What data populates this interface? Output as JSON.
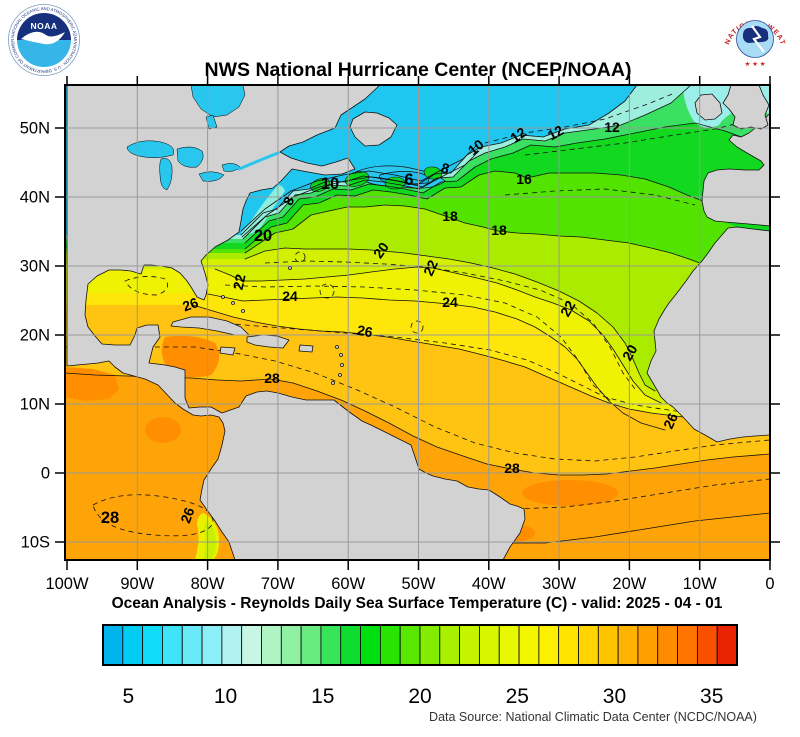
{
  "header": {
    "title": "NWS National Hurricane Center (NCEP/NOAA)"
  },
  "logos": {
    "noaa_acronym": "NOAA",
    "noaa_ring_text": "NATIONAL OCEANIC AND ATMOSPHERIC ADMINISTRATION · U.S. DEPARTMENT OF COMMERCE",
    "nws_ring_text": "NATIONAL WEATHER SERVICE",
    "nws_stars": "★ ★ ★"
  },
  "map": {
    "lat_ticks": [
      "50N",
      "40N",
      "30N",
      "20N",
      "10N",
      "0",
      "10S"
    ],
    "lon_ticks": [
      "100W",
      "90W",
      "80W",
      "70W",
      "60W",
      "50W",
      "40W",
      "30W",
      "20W",
      "10W",
      "0"
    ],
    "contour_labels": [
      "10",
      "6",
      "8",
      "8",
      "10",
      "12",
      "12",
      "12",
      "16",
      "18",
      "18",
      "20",
      "20",
      "20",
      "22",
      "22",
      "22",
      "24",
      "24",
      "26",
      "26",
      "26",
      "28",
      "28",
      "28",
      "26"
    ],
    "land_color": "#d2d2d2",
    "grid_color": "#999999",
    "cold_water_color": "#1fc7f0",
    "warm_water_color": "#ffa408"
  },
  "footer": {
    "subtitle": "Ocean Analysis - Reynolds Daily Sea Surface Temperature (C) - valid: 2025 - 04 - 01",
    "datasource": "Data Source: National Climatic Data Center (NCDC/NOAA)"
  },
  "colorbar": {
    "ticks": [
      "5",
      "10",
      "15",
      "20",
      "25",
      "30",
      "35"
    ],
    "colors": [
      "#00b4ee",
      "#00ccf4",
      "#10dcf8",
      "#40e4f8",
      "#68eaf8",
      "#8ceef6",
      "#b0f2f0",
      "#c8f6e4",
      "#b0f4c4",
      "#90f0a4",
      "#68ec80",
      "#38e458",
      "#10dc30",
      "#00e010",
      "#28e400",
      "#58e800",
      "#84ec00",
      "#a8f000",
      "#c4f400",
      "#d8f600",
      "#e8f800",
      "#f4f600",
      "#fcf000",
      "#ffe400",
      "#ffd400",
      "#ffc400",
      "#ffb200",
      "#ffa000",
      "#ff8c00",
      "#ff7400",
      "#f85000",
      "#e82400"
    ]
  }
}
